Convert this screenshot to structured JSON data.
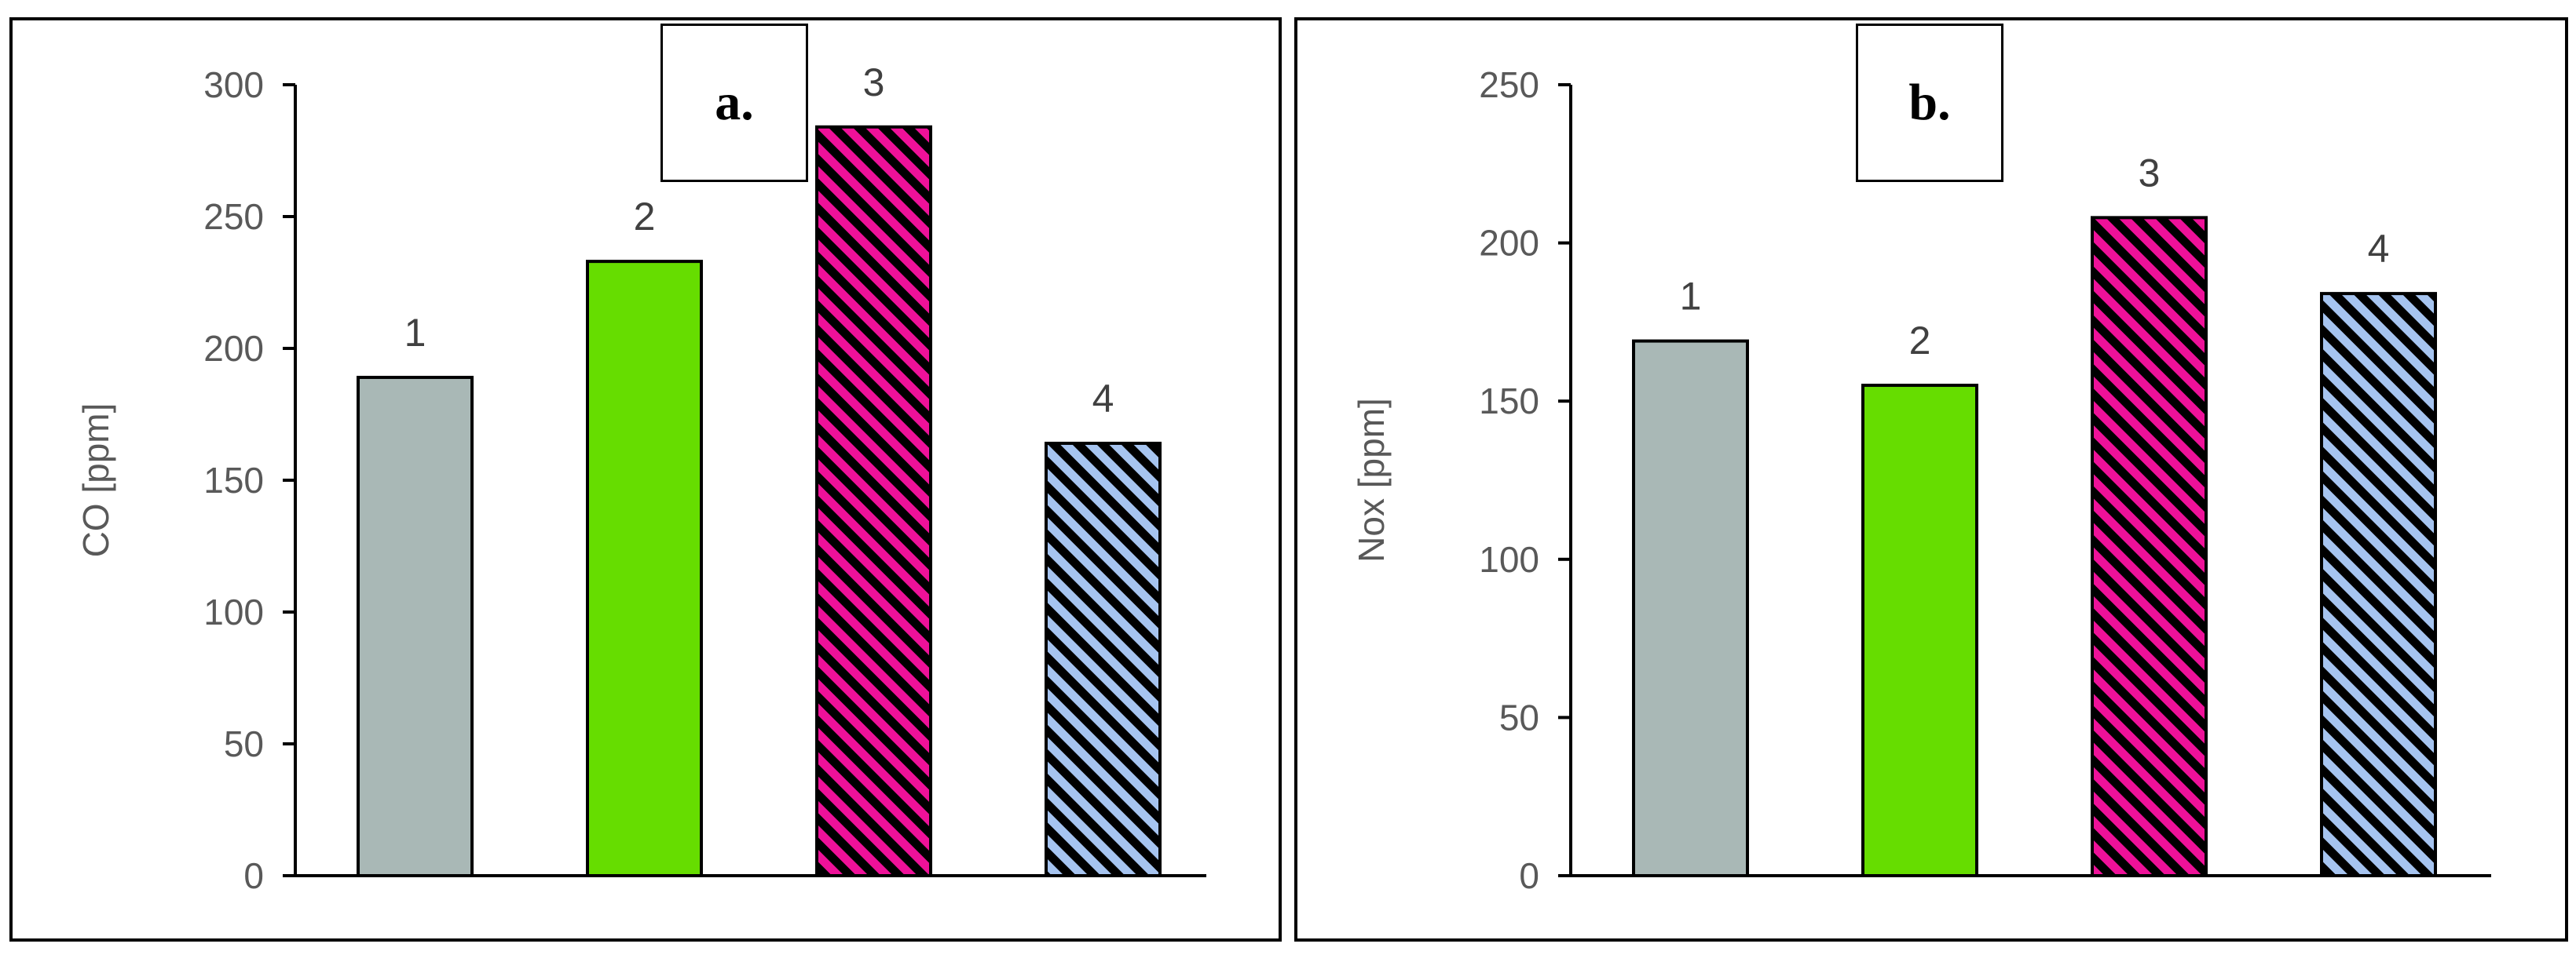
{
  "chart_data": [
    {
      "type": "bar",
      "panel_label": "a.",
      "ylabel": "CO [ppm]",
      "xlabel": "",
      "ylim": [
        0,
        300
      ],
      "yticks": [
        0,
        50,
        100,
        150,
        200,
        250,
        300
      ],
      "categories": [
        "1",
        "2",
        "3",
        "4"
      ],
      "values": [
        189,
        233,
        284,
        164
      ],
      "bar_styles": [
        {
          "fill": "#A9B8B6",
          "pattern": "none"
        },
        {
          "fill": "#66DD00",
          "pattern": "none"
        },
        {
          "fill": "#EE1199",
          "pattern": "diagonal-stripes"
        },
        {
          "fill": "#A6C4F0",
          "pattern": "diagonal-stripes"
        }
      ],
      "grid": false,
      "legend": "none"
    },
    {
      "type": "bar",
      "panel_label": "b.",
      "ylabel": "Nox [ppm]",
      "xlabel": "",
      "ylim": [
        0,
        250
      ],
      "yticks": [
        0,
        50,
        100,
        150,
        200,
        250
      ],
      "categories": [
        "1",
        "2",
        "3",
        "4"
      ],
      "values": [
        169,
        155,
        208,
        184
      ],
      "bar_styles": [
        {
          "fill": "#A9B8B6",
          "pattern": "none"
        },
        {
          "fill": "#66DD00",
          "pattern": "none"
        },
        {
          "fill": "#EE1199",
          "pattern": "diagonal-stripes"
        },
        {
          "fill": "#A6C4F0",
          "pattern": "diagonal-stripes"
        }
      ],
      "grid": false,
      "legend": "none"
    }
  ],
  "colors": {
    "axis": "#000000",
    "stripe": "#000000",
    "bar_outline": "#000000"
  }
}
